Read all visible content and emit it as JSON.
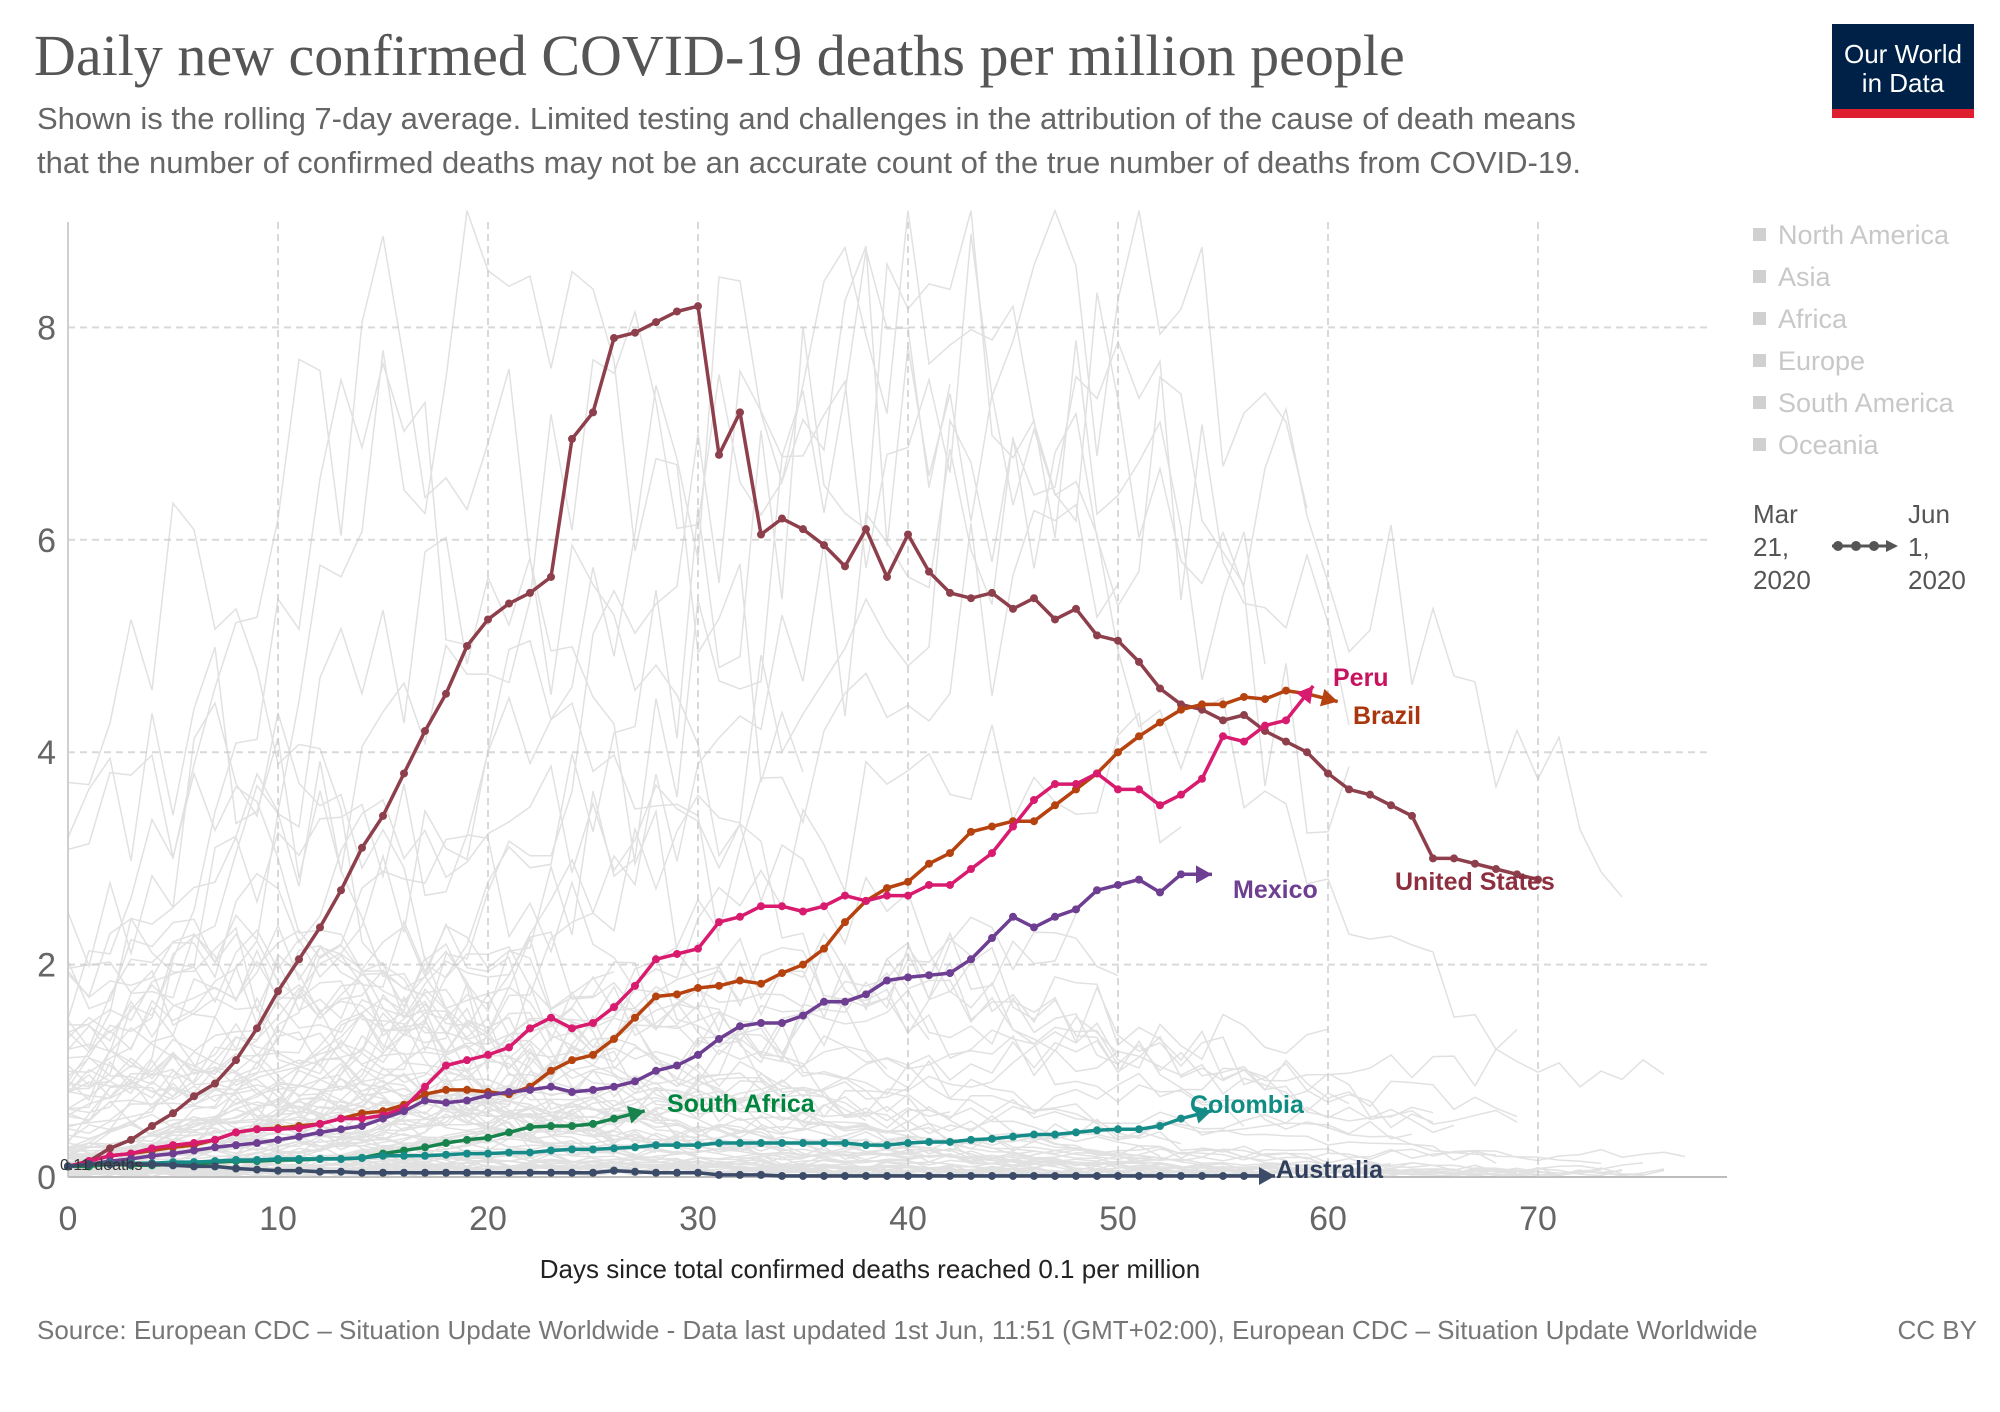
{
  "title": "Daily new confirmed COVID-19 deaths per million people",
  "subtitle_line1": "Shown is the rolling 7-day average. Limited testing and challenges in the attribution of the cause of death means",
  "subtitle_line2": "that the number of confirmed deaths may not be an accurate count of the true number of deaths from COVID-19.",
  "logo": {
    "line1": "Our World",
    "line2": "in Data",
    "bg_color": "#002147",
    "accent_color": "#dd1f2f"
  },
  "legend": {
    "items": [
      "North America",
      "Asia",
      "Africa",
      "Europe",
      "South America",
      "Oceania"
    ],
    "time_start": [
      "Mar",
      "21,",
      "2020"
    ],
    "time_end": [
      "Jun",
      "1,",
      "2020"
    ]
  },
  "source": "Source: European CDC – Situation Update Worldwide - Data last updated 1st Jun, 11:51 (GMT+02:00), European CDC – Situation Update Worldwide",
  "license": "CC BY",
  "chart_data": {
    "type": "line",
    "xlabel": "Days since total confirmed deaths reached 0.1 per million",
    "ylabel": "",
    "xlim": [
      0,
      79
    ],
    "ylim": [
      0,
      8.8
    ],
    "xticks": [
      0,
      10,
      20,
      30,
      40,
      50,
      60,
      70
    ],
    "yticks": [
      0,
      2,
      4,
      6,
      8
    ],
    "grid": true,
    "annotation": "0.11 deaths",
    "series": [
      {
        "name": "United States",
        "color": "#8e3f4c",
        "label_color": "#8e2f3f",
        "values": [
          0.1,
          0.15,
          0.27,
          0.35,
          0.48,
          0.6,
          0.76,
          0.88,
          1.1,
          1.4,
          1.75,
          2.05,
          2.35,
          2.7,
          3.1,
          3.4,
          3.8,
          4.2,
          4.55,
          5.0,
          5.25,
          5.4,
          5.5,
          5.65,
          6.95,
          7.2,
          7.9,
          7.95,
          8.05,
          8.15,
          8.2,
          6.8,
          7.2,
          6.05,
          6.2,
          6.1,
          5.95,
          5.75,
          6.1,
          5.65,
          6.05,
          5.7,
          5.5,
          5.45,
          5.5,
          5.35,
          5.45,
          5.25,
          5.35,
          5.1,
          5.05,
          4.85,
          4.6,
          4.45,
          4.4,
          4.3,
          4.35,
          4.2,
          4.1,
          4.0,
          3.8,
          3.65,
          3.6,
          3.5,
          3.4,
          3.0,
          3.0,
          2.95,
          2.9,
          2.85,
          2.8
        ]
      },
      {
        "name": "Brazil",
        "color": "#b6430f",
        "label_color": "#a8360e",
        "values": [
          0.1,
          0.15,
          0.2,
          0.22,
          0.25,
          0.28,
          0.3,
          0.35,
          0.42,
          0.45,
          0.46,
          0.48,
          0.5,
          0.55,
          0.6,
          0.62,
          0.68,
          0.78,
          0.82,
          0.82,
          0.8,
          0.78,
          0.85,
          1.0,
          1.1,
          1.15,
          1.3,
          1.5,
          1.7,
          1.72,
          1.78,
          1.8,
          1.85,
          1.82,
          1.92,
          2.0,
          2.15,
          2.4,
          2.6,
          2.72,
          2.78,
          2.95,
          3.05,
          3.25,
          3.3,
          3.35,
          3.35,
          3.5,
          3.65,
          3.8,
          4.0,
          4.15,
          4.28,
          4.4,
          4.45,
          4.45,
          4.52,
          4.5,
          4.58,
          4.55,
          4.5
        ]
      },
      {
        "name": "Peru",
        "color": "#d81b6f",
        "label_color": "#c6125f",
        "values": [
          0.1,
          0.15,
          0.2,
          0.22,
          0.27,
          0.3,
          0.32,
          0.35,
          0.42,
          0.45,
          0.45,
          0.46,
          0.5,
          0.55,
          0.55,
          0.58,
          0.65,
          0.85,
          1.05,
          1.1,
          1.15,
          1.22,
          1.4,
          1.5,
          1.4,
          1.45,
          1.6,
          1.8,
          2.05,
          2.1,
          2.15,
          2.4,
          2.45,
          2.55,
          2.55,
          2.5,
          2.55,
          2.65,
          2.6,
          2.65,
          2.65,
          2.75,
          2.75,
          2.9,
          3.05,
          3.3,
          3.55,
          3.7,
          3.7,
          3.8,
          3.65,
          3.65,
          3.5,
          3.6,
          3.75,
          4.15,
          4.1,
          4.25,
          4.3,
          4.55
        ]
      },
      {
        "name": "Mexico",
        "color": "#6d3e91",
        "label_color": "#6d3e91",
        "values": [
          0.1,
          0.12,
          0.15,
          0.17,
          0.2,
          0.22,
          0.25,
          0.28,
          0.3,
          0.32,
          0.35,
          0.38,
          0.42,
          0.45,
          0.48,
          0.55,
          0.62,
          0.72,
          0.7,
          0.72,
          0.77,
          0.8,
          0.82,
          0.85,
          0.8,
          0.82,
          0.85,
          0.9,
          1.0,
          1.05,
          1.15,
          1.3,
          1.42,
          1.45,
          1.45,
          1.52,
          1.65,
          1.65,
          1.72,
          1.85,
          1.88,
          1.9,
          1.92,
          2.05,
          2.25,
          2.45,
          2.35,
          2.45,
          2.52,
          2.7,
          2.75,
          2.8,
          2.68,
          2.85,
          2.85
        ]
      },
      {
        "name": "South Africa",
        "color": "#18834c",
        "label_color": "#00853f",
        "values": [
          0.1,
          0.1,
          0.12,
          0.11,
          0.11,
          0.12,
          0.12,
          0.14,
          0.15,
          0.15,
          0.16,
          0.16,
          0.17,
          0.17,
          0.18,
          0.22,
          0.25,
          0.28,
          0.32,
          0.35,
          0.37,
          0.42,
          0.47,
          0.48,
          0.48,
          0.5,
          0.55,
          0.6
        ]
      },
      {
        "name": "Colombia",
        "color": "#178b88",
        "label_color": "#0f8c83",
        "values": [
          0.1,
          0.12,
          0.13,
          0.13,
          0.13,
          0.14,
          0.14,
          0.15,
          0.16,
          0.16,
          0.17,
          0.17,
          0.17,
          0.17,
          0.18,
          0.2,
          0.2,
          0.2,
          0.21,
          0.22,
          0.22,
          0.23,
          0.23,
          0.25,
          0.26,
          0.26,
          0.27,
          0.28,
          0.3,
          0.3,
          0.3,
          0.32,
          0.32,
          0.32,
          0.32,
          0.32,
          0.32,
          0.32,
          0.3,
          0.3,
          0.32,
          0.33,
          0.33,
          0.35,
          0.36,
          0.38,
          0.4,
          0.4,
          0.42,
          0.44,
          0.45,
          0.45,
          0.48,
          0.55,
          0.6
        ]
      },
      {
        "name": "Australia",
        "color": "#3b4b68",
        "label_color": "#2f3e5c",
        "values": [
          0.1,
          0.12,
          0.12,
          0.12,
          0.12,
          0.11,
          0.1,
          0.1,
          0.08,
          0.07,
          0.06,
          0.06,
          0.05,
          0.05,
          0.04,
          0.04,
          0.04,
          0.04,
          0.04,
          0.04,
          0.04,
          0.04,
          0.04,
          0.04,
          0.04,
          0.04,
          0.06,
          0.05,
          0.04,
          0.04,
          0.04,
          0.02,
          0.02,
          0.02,
          0.01,
          0.01,
          0.01,
          0.01,
          0.01,
          0.01,
          0.01,
          0.01,
          0.01,
          0.01,
          0.01,
          0.01,
          0.01,
          0.01,
          0.01,
          0.01,
          0.01,
          0.01,
          0.01,
          0.01,
          0.01,
          0.01,
          0.01,
          0.01
        ]
      }
    ]
  }
}
